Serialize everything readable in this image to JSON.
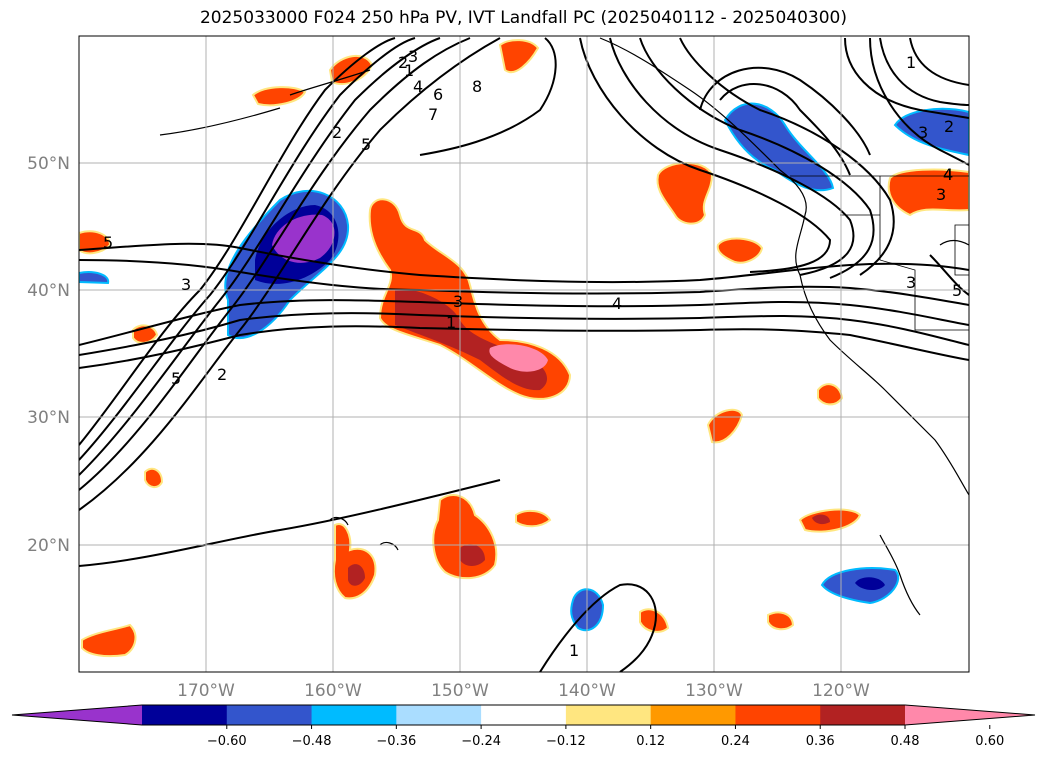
{
  "title": "2025033000 F024 250 hPa PV, IVT Landfall PC (2025040112 - 2025040300)",
  "map": {
    "projection": "PlateCarree",
    "lon_range": [
      -180,
      -110
    ],
    "lat_range": [
      10,
      60
    ],
    "lat_ticks": [
      {
        "value": 50,
        "label": "50°N"
      },
      {
        "value": 40,
        "label": "40°N"
      },
      {
        "value": 30,
        "label": "30°N"
      },
      {
        "value": 20,
        "label": "20°N"
      }
    ],
    "lon_ticks": [
      {
        "value": -170,
        "label": "170°W"
      },
      {
        "value": -160,
        "label": "160°W"
      },
      {
        "value": -150,
        "label": "150°W"
      },
      {
        "value": -140,
        "label": "140°W"
      },
      {
        "value": -130,
        "label": "130°W"
      },
      {
        "value": -120,
        "label": "120°W"
      }
    ],
    "gridlines": true,
    "contour_labels": [
      "1",
      "2",
      "3",
      "4",
      "5",
      "6",
      "7",
      "8",
      "3",
      "5",
      "2",
      "5",
      "3",
      "1",
      "3",
      "4",
      "3",
      "4",
      "5",
      "1",
      "2",
      "1",
      "2",
      "3",
      "4"
    ]
  },
  "colorbar": {
    "levels": [
      "−0.60",
      "−0.48",
      "−0.36",
      "−0.24",
      "−0.12",
      "0.12",
      "0.24",
      "0.36",
      "0.48",
      "0.60"
    ],
    "colors": [
      "#9933cc",
      "#000099",
      "#3355cc",
      "#00bbff",
      "#aaddff",
      "#ffffff",
      "#ffe680",
      "#ff9900",
      "#ff4400",
      "#b22222",
      "#ff88aa"
    ],
    "extend": "both"
  }
}
